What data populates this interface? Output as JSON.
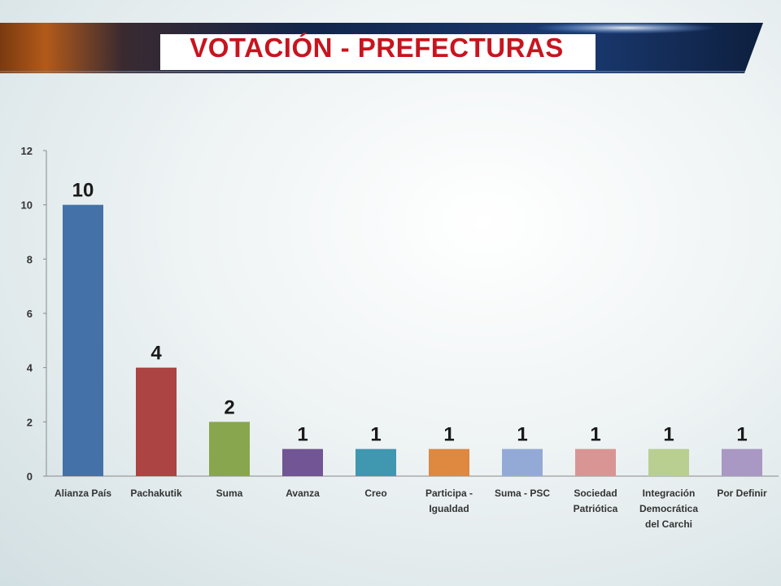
{
  "slide": {
    "title": "VOTACIÓN - PREFECTURAS"
  },
  "chart_data": {
    "type": "bar",
    "categories": [
      [
        "Alianza País"
      ],
      [
        "Pachakutik"
      ],
      [
        "Suma"
      ],
      [
        "Avanza"
      ],
      [
        "Creo"
      ],
      [
        "Participa -",
        "Igualdad"
      ],
      [
        "Suma - PSC"
      ],
      [
        "Sociedad",
        "Patriótica"
      ],
      [
        "Integración",
        "Democrática",
        "del Carchi"
      ],
      [
        "Por Definir"
      ]
    ],
    "values": [
      10,
      4,
      2,
      1,
      1,
      1,
      1,
      1,
      1,
      1
    ],
    "colors": [
      "#4472a8",
      "#ab4442",
      "#88a64e",
      "#725594",
      "#4097b0",
      "#de8840",
      "#94aad6",
      "#d89594",
      "#b9cf92",
      "#a898c3"
    ],
    "ylim": [
      0,
      12
    ],
    "yticks": [
      0,
      2,
      4,
      6,
      8,
      10,
      12
    ],
    "data_labels": true,
    "grid": false,
    "legend": "none",
    "title": "",
    "xlabel": "",
    "ylabel": ""
  }
}
